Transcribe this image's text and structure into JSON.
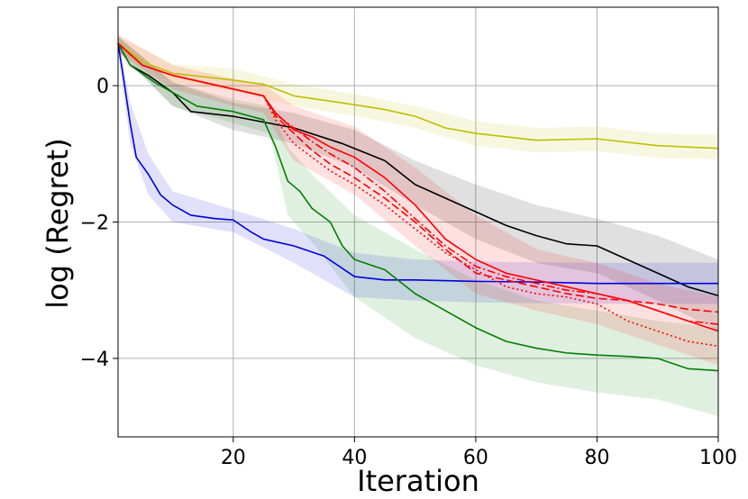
{
  "chart_data": {
    "type": "line",
    "title": "",
    "xlabel": "Iteration",
    "ylabel": "log (Regret)",
    "xlim": [
      1,
      100
    ],
    "ylim": [
      -5.15,
      1.15
    ],
    "grid": true,
    "x_ticks": [
      {
        "value": 20,
        "label": "20"
      },
      {
        "value": 40,
        "label": "40"
      },
      {
        "value": 60,
        "label": "60"
      },
      {
        "value": 80,
        "label": "80"
      },
      {
        "value": 100,
        "label": "100"
      }
    ],
    "y_ticks": [
      {
        "value": 0,
        "label": "0"
      },
      {
        "value": -2,
        "label": "−2"
      },
      {
        "value": -4,
        "label": "−4"
      }
    ],
    "series": [
      {
        "name": "yellow",
        "color": "#bfbf00",
        "dash": "solid",
        "points": [
          [
            1,
            0.62
          ],
          [
            5,
            0.35
          ],
          [
            10,
            0.18
          ],
          [
            20,
            0.08
          ],
          [
            25,
            0.02
          ],
          [
            30,
            -0.15
          ],
          [
            40,
            -0.28
          ],
          [
            45,
            -0.35
          ],
          [
            50,
            -0.45
          ],
          [
            55,
            -0.62
          ],
          [
            60,
            -0.7
          ],
          [
            70,
            -0.8
          ],
          [
            80,
            -0.78
          ],
          [
            90,
            -0.88
          ],
          [
            100,
            -0.92
          ]
        ],
        "band_upper": [
          [
            1,
            0.72
          ],
          [
            10,
            0.32
          ],
          [
            20,
            0.25
          ],
          [
            30,
            0.02
          ],
          [
            40,
            -0.12
          ],
          [
            50,
            -0.3
          ],
          [
            60,
            -0.52
          ],
          [
            70,
            -0.62
          ],
          [
            80,
            -0.6
          ],
          [
            90,
            -0.7
          ],
          [
            100,
            -0.72
          ]
        ],
        "band_lower": [
          [
            1,
            0.5
          ],
          [
            10,
            0.05
          ],
          [
            20,
            -0.08
          ],
          [
            30,
            -0.3
          ],
          [
            40,
            -0.44
          ],
          [
            50,
            -0.62
          ],
          [
            60,
            -0.88
          ],
          [
            70,
            -0.98
          ],
          [
            80,
            -0.96
          ],
          [
            90,
            -1.06
          ],
          [
            100,
            -1.08
          ]
        ]
      },
      {
        "name": "black",
        "color": "#000000",
        "dash": "solid",
        "points": [
          [
            1,
            0.62
          ],
          [
            3,
            0.3
          ],
          [
            6,
            0.15
          ],
          [
            10,
            -0.1
          ],
          [
            13,
            -0.38
          ],
          [
            20,
            -0.45
          ],
          [
            30,
            -0.62
          ],
          [
            38,
            -0.85
          ],
          [
            45,
            -1.1
          ],
          [
            50,
            -1.45
          ],
          [
            55,
            -1.65
          ],
          [
            60,
            -1.85
          ],
          [
            65,
            -2.05
          ],
          [
            70,
            -2.2
          ],
          [
            75,
            -2.32
          ],
          [
            80,
            -2.35
          ],
          [
            85,
            -2.55
          ],
          [
            90,
            -2.75
          ],
          [
            95,
            -2.95
          ],
          [
            100,
            -3.08
          ]
        ],
        "band_upper": [
          [
            1,
            0.72
          ],
          [
            10,
            0.05
          ],
          [
            20,
            -0.25
          ],
          [
            30,
            -0.4
          ],
          [
            40,
            -0.65
          ],
          [
            50,
            -1.1
          ],
          [
            60,
            -1.45
          ],
          [
            70,
            -1.75
          ],
          [
            80,
            -1.95
          ],
          [
            90,
            -2.2
          ],
          [
            100,
            -2.55
          ]
        ],
        "band_lower": [
          [
            1,
            0.5
          ],
          [
            10,
            -0.3
          ],
          [
            20,
            -0.65
          ],
          [
            30,
            -0.85
          ],
          [
            40,
            -1.2
          ],
          [
            50,
            -1.75
          ],
          [
            60,
            -2.25
          ],
          [
            70,
            -2.6
          ],
          [
            80,
            -2.75
          ],
          [
            90,
            -3.15
          ],
          [
            100,
            -3.6
          ]
        ]
      },
      {
        "name": "blue",
        "color": "#0000dd",
        "dash": "solid",
        "points": [
          [
            1,
            0.62
          ],
          [
            2,
            0.05
          ],
          [
            3,
            -0.55
          ],
          [
            4,
            -1.05
          ],
          [
            6,
            -1.3
          ],
          [
            8,
            -1.6
          ],
          [
            10,
            -1.75
          ],
          [
            13,
            -1.9
          ],
          [
            17,
            -1.95
          ],
          [
            20,
            -1.97
          ],
          [
            23,
            -2.15
          ],
          [
            25,
            -2.25
          ],
          [
            30,
            -2.35
          ],
          [
            35,
            -2.5
          ],
          [
            40,
            -2.8
          ],
          [
            45,
            -2.85
          ],
          [
            50,
            -2.85
          ],
          [
            60,
            -2.87
          ],
          [
            70,
            -2.88
          ],
          [
            80,
            -2.9
          ],
          [
            90,
            -2.9
          ],
          [
            100,
            -2.9
          ]
        ],
        "band_upper": [
          [
            1,
            0.72
          ],
          [
            3,
            -0.25
          ],
          [
            6,
            -1.0
          ],
          [
            10,
            -1.55
          ],
          [
            20,
            -1.82
          ],
          [
            30,
            -2.1
          ],
          [
            40,
            -2.45
          ],
          [
            50,
            -2.55
          ],
          [
            60,
            -2.58
          ],
          [
            80,
            -2.6
          ],
          [
            100,
            -2.6
          ]
        ],
        "band_lower": [
          [
            1,
            0.5
          ],
          [
            3,
            -0.85
          ],
          [
            6,
            -1.6
          ],
          [
            10,
            -2.0
          ],
          [
            20,
            -2.15
          ],
          [
            30,
            -2.6
          ],
          [
            40,
            -3.1
          ],
          [
            50,
            -3.15
          ],
          [
            60,
            -3.18
          ],
          [
            80,
            -3.2
          ],
          [
            100,
            -3.2
          ]
        ]
      },
      {
        "name": "green",
        "color": "#008000",
        "dash": "solid",
        "points": [
          [
            1,
            0.62
          ],
          [
            3,
            0.3
          ],
          [
            7,
            0.05
          ],
          [
            10,
            -0.1
          ],
          [
            14,
            -0.3
          ],
          [
            20,
            -0.38
          ],
          [
            25,
            -0.5
          ],
          [
            27,
            -0.9
          ],
          [
            29,
            -1.4
          ],
          [
            31,
            -1.55
          ],
          [
            33,
            -1.8
          ],
          [
            36,
            -2.0
          ],
          [
            38,
            -2.35
          ],
          [
            40,
            -2.55
          ],
          [
            45,
            -2.7
          ],
          [
            50,
            -3.05
          ],
          [
            55,
            -3.3
          ],
          [
            60,
            -3.55
          ],
          [
            65,
            -3.75
          ],
          [
            70,
            -3.85
          ],
          [
            75,
            -3.92
          ],
          [
            80,
            -3.95
          ],
          [
            85,
            -3.97
          ],
          [
            90,
            -4.0
          ],
          [
            95,
            -4.15
          ],
          [
            100,
            -4.18
          ]
        ],
        "band_upper": [
          [
            1,
            0.72
          ],
          [
            10,
            0.05
          ],
          [
            20,
            -0.2
          ],
          [
            26,
            -0.3
          ],
          [
            29,
            -0.9
          ],
          [
            33,
            -1.3
          ],
          [
            40,
            -1.9
          ],
          [
            50,
            -2.4
          ],
          [
            60,
            -2.85
          ],
          [
            70,
            -3.15
          ],
          [
            80,
            -3.3
          ],
          [
            90,
            -3.45
          ],
          [
            100,
            -3.55
          ]
        ],
        "band_lower": [
          [
            1,
            0.5
          ],
          [
            10,
            -0.3
          ],
          [
            20,
            -0.55
          ],
          [
            26,
            -0.7
          ],
          [
            29,
            -1.9
          ],
          [
            33,
            -2.3
          ],
          [
            40,
            -3.1
          ],
          [
            50,
            -3.7
          ],
          [
            60,
            -4.1
          ],
          [
            70,
            -4.35
          ],
          [
            80,
            -4.5
          ],
          [
            90,
            -4.6
          ],
          [
            100,
            -4.85
          ]
        ]
      },
      {
        "name": "red",
        "color": "#ff0000",
        "dash": "solid",
        "points": [
          [
            1,
            0.62
          ],
          [
            5,
            0.3
          ],
          [
            10,
            0.15
          ],
          [
            20,
            -0.05
          ],
          [
            25,
            -0.15
          ],
          [
            27,
            -0.4
          ],
          [
            30,
            -0.65
          ],
          [
            33,
            -0.75
          ],
          [
            36,
            -0.9
          ],
          [
            40,
            -1.05
          ],
          [
            45,
            -1.35
          ],
          [
            50,
            -1.75
          ],
          [
            55,
            -2.25
          ],
          [
            60,
            -2.55
          ],
          [
            65,
            -2.75
          ],
          [
            70,
            -2.85
          ],
          [
            75,
            -2.95
          ],
          [
            80,
            -3.05
          ],
          [
            85,
            -3.15
          ],
          [
            90,
            -3.3
          ],
          [
            95,
            -3.45
          ],
          [
            100,
            -3.6
          ]
        ],
        "band_upper": [
          [
            1,
            0.75
          ],
          [
            10,
            0.3
          ],
          [
            20,
            0.1
          ],
          [
            25,
            0.02
          ],
          [
            30,
            -0.3
          ],
          [
            40,
            -0.6
          ],
          [
            50,
            -1.2
          ],
          [
            60,
            -1.9
          ],
          [
            70,
            -2.4
          ],
          [
            80,
            -2.6
          ],
          [
            90,
            -2.9
          ],
          [
            100,
            -3.1
          ]
        ],
        "band_lower": [
          [
            1,
            0.48
          ],
          [
            10,
            -0.05
          ],
          [
            20,
            -0.3
          ],
          [
            25,
            -0.4
          ],
          [
            30,
            -1.1
          ],
          [
            40,
            -1.6
          ],
          [
            50,
            -2.35
          ],
          [
            60,
            -3.05
          ],
          [
            70,
            -3.3
          ],
          [
            80,
            -3.5
          ],
          [
            90,
            -3.8
          ],
          [
            100,
            -4.1
          ]
        ]
      },
      {
        "name": "red-dashed",
        "color": "#ff0000",
        "dash": "dashed",
        "points": [
          [
            1,
            0.62
          ],
          [
            5,
            0.3
          ],
          [
            10,
            0.15
          ],
          [
            20,
            -0.05
          ],
          [
            25,
            -0.15
          ],
          [
            27,
            -0.45
          ],
          [
            30,
            -0.7
          ],
          [
            33,
            -0.95
          ],
          [
            36,
            -1.15
          ],
          [
            40,
            -1.35
          ],
          [
            45,
            -1.65
          ],
          [
            50,
            -2.0
          ],
          [
            55,
            -2.4
          ],
          [
            60,
            -2.75
          ],
          [
            65,
            -2.85
          ],
          [
            70,
            -2.95
          ],
          [
            75,
            -3.05
          ],
          [
            80,
            -3.12
          ],
          [
            85,
            -3.15
          ],
          [
            90,
            -3.2
          ],
          [
            95,
            -3.28
          ],
          [
            100,
            -3.32
          ]
        ]
      },
      {
        "name": "red-dotted",
        "color": "#ff0000",
        "dash": "dotted",
        "points": [
          [
            1,
            0.62
          ],
          [
            5,
            0.3
          ],
          [
            10,
            0.15
          ],
          [
            20,
            -0.05
          ],
          [
            25,
            -0.15
          ],
          [
            27,
            -0.5
          ],
          [
            30,
            -0.85
          ],
          [
            33,
            -1.05
          ],
          [
            36,
            -1.25
          ],
          [
            40,
            -1.45
          ],
          [
            45,
            -1.75
          ],
          [
            50,
            -2.1
          ],
          [
            55,
            -2.45
          ],
          [
            60,
            -2.7
          ],
          [
            65,
            -2.95
          ],
          [
            70,
            -3.05
          ],
          [
            75,
            -3.1
          ],
          [
            80,
            -3.2
          ],
          [
            85,
            -3.45
          ],
          [
            90,
            -3.6
          ],
          [
            95,
            -3.75
          ],
          [
            100,
            -3.82
          ]
        ]
      },
      {
        "name": "red-dashdot",
        "color": "#ff0000",
        "dash": "dashdot",
        "points": [
          [
            1,
            0.62
          ],
          [
            5,
            0.3
          ],
          [
            10,
            0.15
          ],
          [
            20,
            -0.05
          ],
          [
            25,
            -0.15
          ],
          [
            27,
            -0.42
          ],
          [
            30,
            -0.62
          ],
          [
            33,
            -0.82
          ],
          [
            36,
            -1.0
          ],
          [
            40,
            -1.2
          ],
          [
            45,
            -1.55
          ],
          [
            50,
            -1.95
          ],
          [
            55,
            -2.35
          ],
          [
            60,
            -2.65
          ],
          [
            65,
            -2.8
          ],
          [
            70,
            -2.9
          ],
          [
            75,
            -3.0
          ],
          [
            80,
            -3.05
          ],
          [
            85,
            -3.15
          ],
          [
            90,
            -3.3
          ],
          [
            95,
            -3.45
          ],
          [
            100,
            -3.5
          ]
        ]
      }
    ]
  }
}
